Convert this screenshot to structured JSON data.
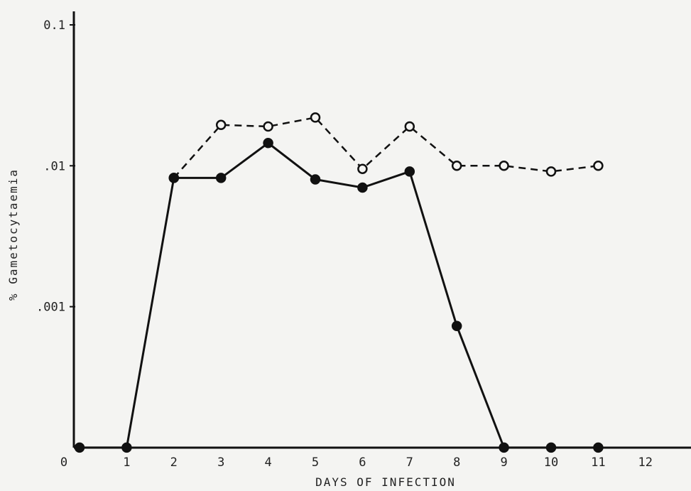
{
  "chart_data": {
    "type": "line",
    "title": "",
    "xlabel": "DAYS OF INFECTION",
    "ylabel": "% Gametocytaemia",
    "y_scale": "log",
    "ylim": [
      0.0001,
      0.1
    ],
    "xlim": [
      0,
      12.7
    ],
    "x_ticks": [
      0,
      1,
      2,
      3,
      4,
      5,
      6,
      7,
      8,
      9,
      10,
      11,
      12
    ],
    "x_tick_labels": [
      "0",
      "1",
      "2",
      "3",
      "4",
      "5",
      "6",
      "7",
      "8",
      "9",
      "10",
      "11",
      "12"
    ],
    "y_ticks": [
      0.1,
      0.01,
      0.001
    ],
    "y_tick_labels": [
      "0.1",
      ".01",
      ".001"
    ],
    "grid": false,
    "series": [
      {
        "style": "dashed",
        "marker": "open-circle",
        "x": [
          2,
          3,
          4,
          5,
          6,
          7,
          8,
          9,
          10,
          11
        ],
        "y": [
          0.0082,
          0.0195,
          0.019,
          0.022,
          0.0095,
          0.019,
          0.01,
          0.01,
          0.0091,
          0.01
        ]
      },
      {
        "style": "solid",
        "marker": "filled-circle",
        "x": [
          0,
          1,
          2,
          3,
          4,
          5,
          6,
          7,
          8,
          9,
          10,
          11
        ],
        "y": [
          0.0001,
          0.0001,
          0.0082,
          0.0082,
          0.0145,
          0.008,
          0.007,
          0.0091,
          0.00073,
          0.0001,
          0.0001,
          0.0001
        ]
      }
    ]
  }
}
